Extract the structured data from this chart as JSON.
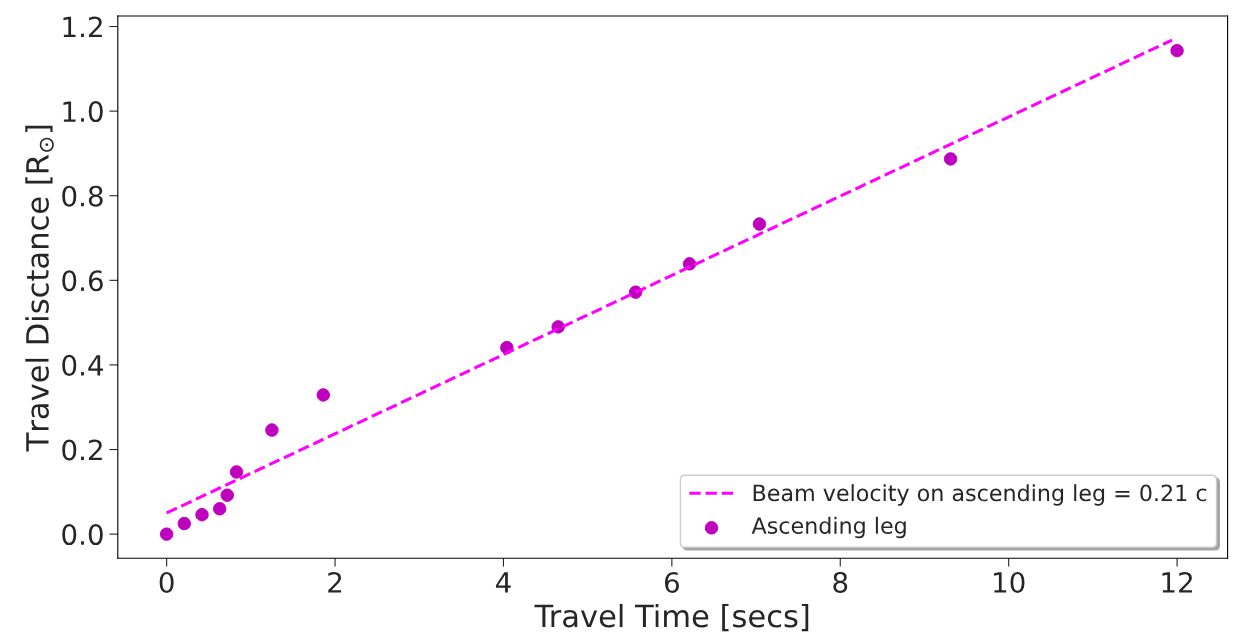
{
  "chart_data": {
    "type": "scatter",
    "xlabel": "Travel Time [secs]",
    "ylabel": "Travel Disctance [R$_{⊙}$]",
    "xlim": [
      -0.58,
      12.6
    ],
    "ylim": [
      -0.057,
      1.225
    ],
    "xticks": [
      0,
      2,
      4,
      6,
      8,
      10,
      12
    ],
    "yticks": [
      {
        "value": 0,
        "label": "0.0"
      },
      {
        "value": 0.2,
        "label": "0.2"
      },
      {
        "value": 0.4,
        "label": "0.4"
      },
      {
        "value": 0.6,
        "label": "0.6"
      },
      {
        "value": 0.8,
        "label": "0.8"
      },
      {
        "value": 1.0,
        "label": "1.0"
      },
      {
        "value": 1.2,
        "label": "1.2"
      }
    ],
    "grid": false,
    "legend": "bottom right",
    "series": [
      {
        "type": "line",
        "name": "Beam velocity on ascending leg = 0.21 c",
        "color": "#ff00ff",
        "line_style": "dashed",
        "marker": "none",
        "x": [
          0,
          11.94
        ],
        "values": [
          0.05,
          1.168
        ]
      },
      {
        "type": "scatter",
        "name": "Ascending leg",
        "color": "#bf00bf",
        "marker": "circle",
        "x": [
          0,
          0.21,
          0.42,
          0.63,
          0.72,
          0.83,
          1.25,
          1.86,
          4.04,
          4.65,
          5.57,
          6.21,
          7.04,
          9.31,
          12.0
        ],
        "values": [
          0,
          0.025,
          0.046,
          0.06,
          0.092,
          0.147,
          0.246,
          0.329,
          0.441,
          0.49,
          0.572,
          0.639,
          0.733,
          0.887,
          1.143
        ]
      }
    ]
  }
}
